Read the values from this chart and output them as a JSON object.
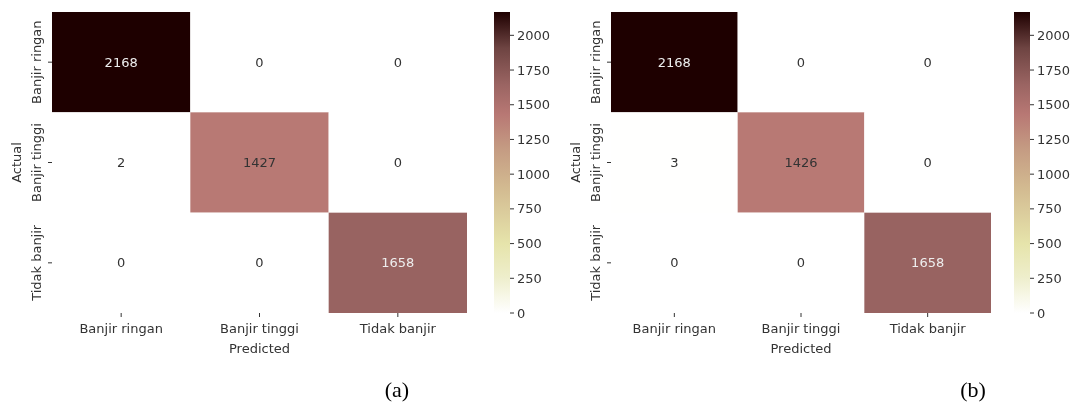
{
  "chart_data": [
    {
      "type": "heatmap",
      "xlabel": "Predicted",
      "ylabel": "Actual",
      "categories": [
        "Banjir ringan",
        "Banjir tinggi",
        "Tidak banjir"
      ],
      "y_categories": [
        "Banjir ringan",
        "Banjir tinggi",
        "Tidak banjir"
      ],
      "cells": [
        [
          2168,
          0,
          0
        ],
        [
          2,
          1427,
          0
        ],
        [
          0,
          0,
          1658
        ]
      ],
      "data_labels": true,
      "clim": [
        0,
        2168
      ],
      "cticks": [
        0,
        250,
        500,
        750,
        1000,
        1250,
        1500,
        1750,
        2000
      ],
      "annotations": [
        "(a)"
      ]
    },
    {
      "type": "heatmap",
      "xlabel": "Predicted",
      "ylabel": "Actual",
      "categories": [
        "Banjir ringan",
        "Banjir tinggi",
        "Tidak banjir"
      ],
      "y_categories": [
        "Banjir ringan",
        "Banjir tinggi",
        "Tidak banjir"
      ],
      "cells": [
        [
          2168,
          0,
          0
        ],
        [
          3,
          1426,
          0
        ],
        [
          0,
          0,
          1658
        ]
      ],
      "data_labels": true,
      "clim": [
        0,
        2168
      ],
      "cticks": [
        0,
        250,
        500,
        750,
        1000,
        1250,
        1500,
        1750,
        2000
      ],
      "annotations": [
        "(b)"
      ]
    }
  ]
}
